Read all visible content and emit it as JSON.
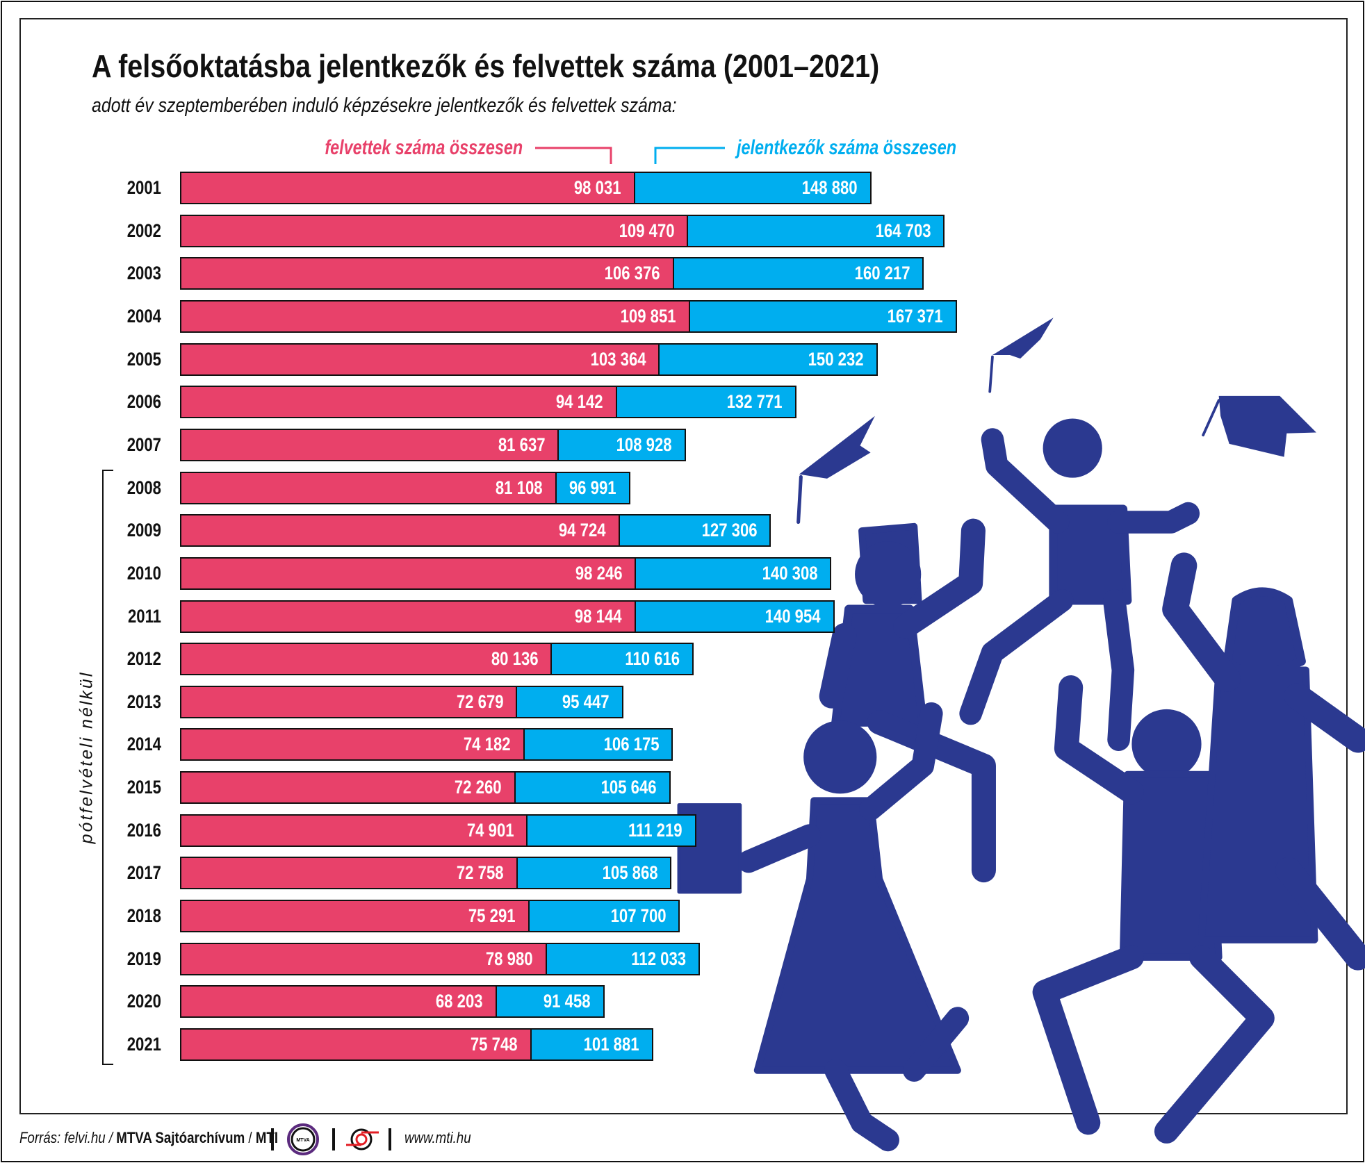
{
  "header": {
    "title": "A felsőoktatásba jelentkezők és felvettek száma (2001–2021)",
    "subtitle": "adott év szeptemberében induló képzésekre jelentkezők és felvettek száma:"
  },
  "chart_data": {
    "type": "bar",
    "orientation": "horizontal",
    "categories": [
      "2001",
      "2002",
      "2003",
      "2004",
      "2005",
      "2006",
      "2007",
      "2008",
      "2009",
      "2010",
      "2011",
      "2012",
      "2013",
      "2014",
      "2015",
      "2016",
      "2017",
      "2018",
      "2019",
      "2020",
      "2021"
    ],
    "series": [
      {
        "name": "felvettek száma összesen",
        "color": "#e8416a",
        "values": [
          98031,
          109470,
          106376,
          109851,
          103364,
          94142,
          81637,
          81108,
          94724,
          98246,
          98144,
          80136,
          72679,
          74182,
          72260,
          74901,
          72758,
          75291,
          78980,
          68203,
          75748
        ],
        "labels": [
          "98 031",
          "109 470",
          "106 376",
          "109 851",
          "103 364",
          "94 142",
          "81 637",
          "81 108",
          "94 724",
          "98 246",
          "98 144",
          "80 136",
          "72 679",
          "74 182",
          "72 260",
          "74 901",
          "72 758",
          "75 291",
          "78 980",
          "68 203",
          "75 748"
        ]
      },
      {
        "name": "jelentkezők száma összesen",
        "color": "#00aeef",
        "values": [
          148880,
          164703,
          160217,
          167371,
          150232,
          132771,
          108928,
          96991,
          127306,
          140308,
          140954,
          110616,
          95447,
          106175,
          105646,
          111219,
          105868,
          107700,
          112033,
          91458,
          101881
        ],
        "labels": [
          "148 880",
          "164 703",
          "160 217",
          "167 371",
          "150 232",
          "132 771",
          "108 928",
          "96 991",
          "127 306",
          "140 308",
          "140 954",
          "110 616",
          "95 447",
          "106 175",
          "105 646",
          "111 219",
          "105 868",
          "107 700",
          "112 033",
          "91 458",
          "101 881"
        ]
      }
    ],
    "overlay": "jelentkezők bar drawn behind felvettek bar, both from zero",
    "annotation": "pótfelvételi nélkül",
    "annotation_range": [
      "2008",
      "2021"
    ]
  },
  "footer": {
    "source_prefix": "Forrás: felvi.hu / ",
    "source_bold1": "MTVA Sajtóarchívum",
    "source_sep": " / ",
    "source_bold2": "MTI",
    "logo_mtva": "MTVA",
    "url": "www.mti.hu"
  },
  "colors": {
    "accepted": "#e8416a",
    "applicants": "#00aeef",
    "illustration": "#2b3990"
  }
}
